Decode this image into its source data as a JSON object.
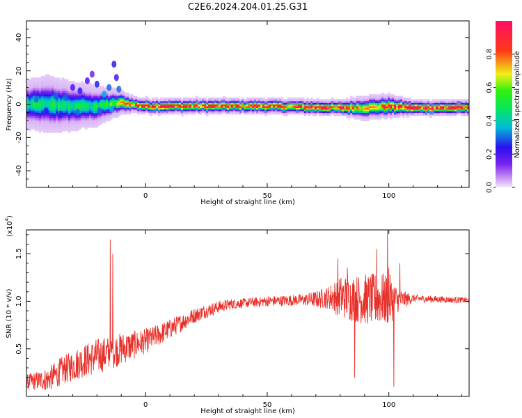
{
  "figure": {
    "title": "C2E6.2024.204.01.25.G31"
  },
  "chart_data": [
    {
      "type": "heatmap",
      "xlabel": "Height of straight line (km)",
      "ylabel": "Frequency (Hz)",
      "xlim": [
        -49,
        133
      ],
      "ylim": [
        -50,
        50
      ],
      "xticks": [
        0,
        50,
        100
      ],
      "yticks": [
        -40,
        -20,
        0,
        20,
        40
      ],
      "grid": false,
      "colorbar": {
        "label": "Normalized spectral amplitude",
        "range": [
          0,
          1
        ],
        "ticks": [
          0.0,
          0.2,
          0.4,
          0.6,
          0.8
        ],
        "colormap": "rainbow (violet-blue-cyan-green-yellow-red-magenta)"
      },
      "ridge": {
        "x": [
          -49,
          -40,
          -30,
          -20,
          -15,
          -10,
          -5,
          0,
          20,
          50,
          80,
          90,
          100,
          110,
          133
        ],
        "y": [
          0,
          0,
          -1,
          -1,
          0,
          1,
          0,
          -1,
          -1,
          -1,
          -2,
          -2,
          -1,
          -2,
          -2
        ],
        "peak": [
          0.45,
          0.5,
          0.45,
          0.5,
          0.55,
          0.7,
          0.85,
          0.95,
          0.9,
          0.9,
          0.95,
          0.7,
          0.9,
          0.95,
          0.9
        ],
        "halfwidth_hz": [
          6,
          7,
          6,
          5,
          4,
          3,
          2,
          2,
          2,
          2,
          2,
          3,
          3,
          2,
          2
        ]
      },
      "scattered_blobs": {
        "x": [
          -45,
          -41,
          -37,
          -33,
          -30,
          -27,
          -24,
          -22,
          -20,
          -17,
          -15,
          -13,
          -12,
          -11,
          -35,
          -28,
          -19,
          -14
        ],
        "y": [
          3,
          -4,
          5,
          4,
          10,
          8,
          14,
          18,
          12,
          6,
          10,
          24,
          16,
          9,
          -6,
          -5,
          -4,
          -3
        ],
        "peak": [
          0.3,
          0.25,
          0.3,
          0.3,
          0.2,
          0.25,
          0.2,
          0.15,
          0.25,
          0.35,
          0.3,
          0.25,
          0.2,
          0.3,
          0.25,
          0.3,
          0.3,
          0.35
        ]
      }
    },
    {
      "type": "line",
      "xlabel": "Height of straight line (km)",
      "ylabel": "SNR (10 * v/v)",
      "multiplier_label": "(x10",
      "multiplier_exponent": "4",
      "xlim": [
        -49,
        133
      ],
      "ylim": [
        0,
        17500
      ],
      "xticks": [
        0,
        50,
        100
      ],
      "yticks": [
        5000,
        10000,
        15000
      ],
      "ytick_labels": [
        "0.5",
        "1.0",
        "1.5"
      ],
      "grid": false,
      "color": "#e8302a",
      "baseline": {
        "x": [
          -49,
          -40,
          -35,
          -30,
          -25,
          -20,
          -15,
          -10,
          -5,
          0,
          5,
          10,
          15,
          20,
          25,
          30,
          35,
          40,
          50,
          60,
          70,
          75,
          80,
          85,
          90,
          95,
          100,
          104,
          110,
          120,
          133
        ],
        "y": [
          1500,
          1800,
          2600,
          3200,
          3800,
          4200,
          4600,
          5000,
          5400,
          5800,
          6400,
          7100,
          7800,
          8500,
          9000,
          9400,
          9700,
          9800,
          10000,
          10100,
          10200,
          10400,
          10500,
          10300,
          10200,
          10200,
          10200,
          10100,
          10300,
          10200,
          10100
        ]
      },
      "noise_amp": {
        "x": [
          -49,
          -35,
          -20,
          -10,
          0,
          20,
          40,
          65,
          75,
          80,
          90,
          100,
          104,
          110,
          133
        ],
        "y": [
          800,
          1500,
          1900,
          1700,
          1300,
          800,
          500,
          600,
          1200,
          2200,
          2700,
          2800,
          1200,
          400,
          300
        ]
      },
      "spikes": {
        "x": [
          -14.5,
          -13.5,
          -13.2,
          79,
          83,
          86,
          95,
          99.5,
          100,
          102,
          104.5
        ],
        "y": [
          16500,
          15000,
          4000,
          14500,
          13500,
          2000,
          15500,
          17500,
          13500,
          1000,
          14000
        ]
      }
    }
  ]
}
